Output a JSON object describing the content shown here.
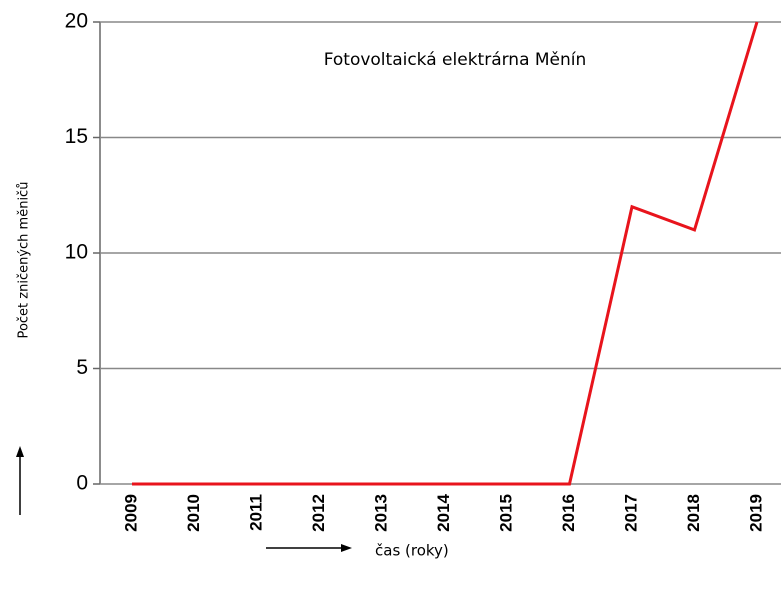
{
  "chart_data": {
    "type": "line",
    "title": "Fotovoltaická elektrárna Měnín",
    "x_label": "čas (roky)",
    "y_label": "Počet zničených měničů",
    "categories": [
      "2009",
      "2010",
      "2011",
      "2012",
      "2013",
      "2014",
      "2015",
      "2016",
      "2017",
      "2018",
      "2019"
    ],
    "series": [
      {
        "name": "Počet zničených měničů",
        "color": "#e8141c",
        "values": [
          0,
          0,
          0,
          0,
          0,
          0,
          0,
          0,
          12,
          11,
          20
        ]
      }
    ],
    "ylim": [
      0,
      20
    ],
    "yticks": [
      0,
      5,
      10,
      15,
      20
    ],
    "grid": true
  }
}
